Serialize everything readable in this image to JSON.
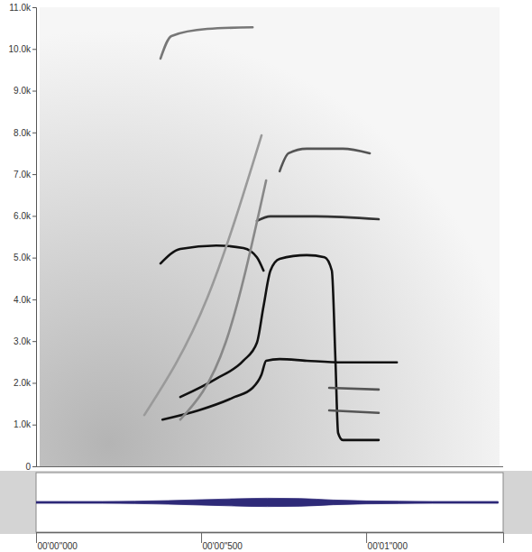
{
  "chart_data": [
    {
      "type": "line",
      "xlim": [
        0,
        1.415
      ],
      "ylim": [
        0,
        11000
      ],
      "yticks": [
        0,
        {
          "value": 1000,
          "label": "1.0k"
        },
        {
          "value": 2000,
          "label": "2.0k"
        },
        {
          "value": 3000,
          "label": "3.0k"
        },
        {
          "value": 4000,
          "label": "4.0k"
        },
        {
          "value": 5000,
          "label": "5.0k"
        },
        {
          "value": 6000,
          "label": "6.0k"
        },
        {
          "value": 7000,
          "label": "7.0k"
        },
        {
          "value": 8000,
          "label": "8.0k"
        },
        {
          "value": 9000,
          "label": "9.0k"
        },
        {
          "value": 10000,
          "label": "10.0k"
        },
        {
          "value": 11000,
          "label": "11.0k"
        }
      ],
      "tick_labels": "y",
      "series": [
        {
          "color": "#111111",
          "x": [
            0.383,
            0.492,
            0.601,
            0.656,
            0.683,
            0.697,
            0.738,
            0.82,
            0.929,
            1.093
          ],
          "values": [
            1120,
            1340,
            1660,
            1880,
            2200,
            2530,
            2570,
            2530,
            2490,
            2490
          ]
        },
        {
          "color": "#111111",
          "x": [
            0.437,
            0.546,
            0.628,
            0.669,
            0.689,
            0.71,
            0.738,
            0.82,
            0.874,
            0.896,
            0.907,
            0.915,
            0.929,
            1.038
          ],
          "values": [
            1660,
            2100,
            2530,
            2960,
            3830,
            4690,
            4970,
            5060,
            5010,
            4690,
            2530,
            800,
            630,
            630
          ]
        },
        {
          "color": "#111111",
          "x": [
            0.377,
            0.437,
            0.546,
            0.628,
            0.669,
            0.689
          ],
          "values": [
            4860,
            5210,
            5290,
            5230,
            5010,
            4690
          ]
        },
        {
          "color": "#333333",
          "x": [
            0.669,
            0.71,
            0.847,
            1.038
          ],
          "values": [
            5880,
            5990,
            5990,
            5920
          ]
        },
        {
          "color": "#555555",
          "x": [
            0.738,
            0.765,
            0.82,
            0.929,
            1.011
          ],
          "values": [
            7070,
            7500,
            7610,
            7610,
            7500
          ]
        },
        {
          "color": "#777777",
          "x": [
            0.377,
            0.41,
            0.519,
            0.656
          ],
          "values": [
            9770,
            10310,
            10480,
            10520
          ]
        },
        {
          "color": "#555555",
          "x": [
            0.888,
            1.038
          ],
          "values": [
            1880,
            1840
          ]
        },
        {
          "color": "#555555",
          "x": [
            0.888,
            1.038
          ],
          "values": [
            1340,
            1280
          ]
        },
        {
          "color": "#888888",
          "x": [
            0.437,
            0.574,
            0.697
          ],
          "values": [
            1120,
            2960,
            6850
          ]
        },
        {
          "color": "#9a9a9a",
          "x": [
            0.328,
            0.519,
            0.683
          ],
          "values": [
            1230,
            4040,
            7930
          ]
        }
      ]
    },
    {
      "type": "area",
      "xlim": [
        0,
        1.415
      ],
      "ylim": [
        -1,
        1
      ],
      "xticks": [
        {
          "value": 0,
          "label": "00'00\"000"
        },
        {
          "value": 0.5,
          "label": "00'00\"500"
        },
        {
          "value": 1,
          "label": "00'01\"000"
        }
      ],
      "tick_labels": "x",
      "color": "#2e2a78",
      "x": [
        0,
        0.1,
        0.2,
        0.3,
        0.4,
        0.5,
        0.6,
        0.7,
        0.8,
        0.9,
        1.0,
        1.1,
        1.2,
        1.3,
        1.4
      ],
      "values": [
        0.03,
        0.03,
        0.03,
        0.04,
        0.06,
        0.09,
        0.12,
        0.14,
        0.13,
        0.08,
        0.05,
        0.04,
        0.03,
        0.03,
        0.03
      ]
    }
  ]
}
